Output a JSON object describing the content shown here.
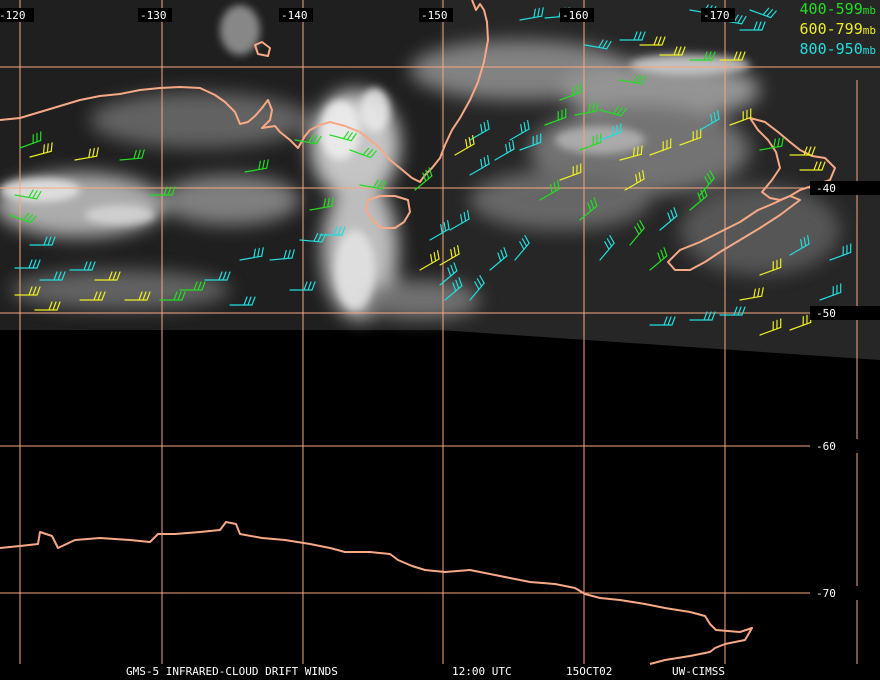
{
  "map": {
    "longitude_labels": [
      "-120",
      "-130",
      "-140",
      "-150",
      "-160",
      "-170"
    ],
    "latitude_labels": [
      "-40",
      "-50",
      "-60",
      "-70"
    ],
    "grid_color": "#f4a882",
    "coast_color": "#f7a986"
  },
  "legend": {
    "items": [
      {
        "range": "400-599",
        "unit": "mb",
        "color": "#22dd22"
      },
      {
        "range": "600-799",
        "unit": "mb",
        "color": "#eeee22"
      },
      {
        "range": "800-950",
        "unit": "mb",
        "color": "#22dddd"
      }
    ]
  },
  "caption": {
    "product": "GMS-5 INFRARED-CLOUD DRIFT WINDS",
    "time": "12:00 UTC",
    "date": "15OCT02",
    "source": "UW-CIMSS"
  },
  "colors": {
    "background": "#000000",
    "text": "#ffffff"
  }
}
